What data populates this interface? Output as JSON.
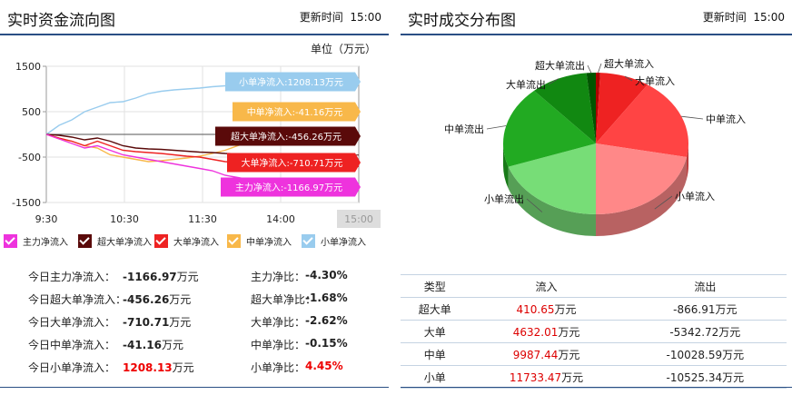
{
  "left_panel": {
    "title": "实时资金流向图",
    "time_label": "更新时间",
    "time_value": "15:00",
    "unit": "单位（万元）"
  },
  "right_panel": {
    "title": "实时成交分布图",
    "time_label": "更新时间",
    "time_value": "15:00"
  },
  "chart_data": [
    {
      "type": "line",
      "x_ticks": [
        "9:30",
        "10:30",
        "11:30",
        "14:00",
        "15:00"
      ],
      "y_ticks": [
        1500,
        500,
        -500,
        -1500
      ],
      "ylim": [
        -1500,
        1500
      ],
      "grid": true,
      "legend_position": "bottom",
      "colors": {
        "main": "#ee33dd",
        "super": "#5a0a0a",
        "large": "#ee2222",
        "medium": "#f8b84a",
        "small": "#99ccee"
      },
      "series": [
        {
          "key": "small",
          "name": "小单净流入",
          "color": "#99ccee",
          "tag": "小单净流入:1208.13万元",
          "values": [
            0,
            200,
            320,
            500,
            600,
            700,
            720,
            800,
            900,
            950,
            980,
            1000,
            1020,
            1050,
            1070,
            1080,
            1100,
            1150,
            1208
          ]
        },
        {
          "key": "medium",
          "name": "中单净流入",
          "color": "#f8b84a",
          "tag": "中单净流入:-41.16万元",
          "values": [
            0,
            -100,
            -150,
            -250,
            -300,
            -450,
            -500,
            -550,
            -600,
            -580,
            -550,
            -520,
            -480,
            -420,
            -350,
            -250,
            -150,
            -80,
            -41
          ]
        },
        {
          "key": "super",
          "name": "超大单净流入",
          "color": "#5a0a0a",
          "tag": "超大单净流入:-456.26万元",
          "values": [
            0,
            -20,
            -60,
            -120,
            -80,
            -150,
            -250,
            -300,
            -320,
            -330,
            -350,
            -370,
            -390,
            -400,
            -420,
            -430,
            -440,
            -450,
            -456
          ]
        },
        {
          "key": "large",
          "name": "大单净流入",
          "color": "#ee2222",
          "tag": "大单净流入:-710.71万元",
          "values": [
            0,
            -80,
            -150,
            -250,
            -150,
            -250,
            -350,
            -380,
            -400,
            -420,
            -450,
            -480,
            -500,
            -550,
            -600,
            -620,
            -650,
            -690,
            -711
          ]
        },
        {
          "key": "main",
          "name": "主力净流入",
          "color": "#ee33dd",
          "tag": "主力净流入:-1166.97万元",
          "values": [
            0,
            -100,
            -200,
            -300,
            -250,
            -350,
            -450,
            -500,
            -550,
            -600,
            -650,
            -700,
            -750,
            -800,
            -900,
            -950,
            -1000,
            -1100,
            -1167
          ]
        }
      ]
    },
    {
      "type": "pie",
      "slices": [
        {
          "label": "超大单流入",
          "value": 410.65,
          "color": "#b00000"
        },
        {
          "label": "大单流入",
          "value": 4632.01,
          "color": "#ee2222"
        },
        {
          "label": "中单流入",
          "value": 9987.44,
          "color": "#ff4444"
        },
        {
          "label": "小单流入",
          "value": 11733.47,
          "color": "#ff8888"
        },
        {
          "label": "小单流出",
          "value": 10525.34,
          "color": "#77dd77"
        },
        {
          "label": "中单流出",
          "value": 10028.59,
          "color": "#22aa22"
        },
        {
          "label": "大单流出",
          "value": 5342.72,
          "color": "#118811"
        },
        {
          "label": "超大单流出",
          "value": 866.91,
          "color": "#005500"
        }
      ]
    }
  ],
  "legend_items": [
    {
      "label": "主力净流入",
      "color": "#ee33dd"
    },
    {
      "label": "超大单净流入",
      "color": "#5a0a0a"
    },
    {
      "label": "大单净流入",
      "color": "#ee2222"
    },
    {
      "label": "中单净流入",
      "color": "#f8b84a"
    },
    {
      "label": "小单净流入",
      "color": "#99ccee"
    }
  ],
  "stats": [
    {
      "label": "今日主力净流入：",
      "value": "-1166.97",
      "value_unit": "万元",
      "ratio_label": "主力净比：",
      "ratio": "-4.30%",
      "highlight": false
    },
    {
      "label": "今日超大单净流入：",
      "value": "-456.26",
      "value_unit": "万元",
      "ratio_label": "超大单净比：",
      "ratio": "-1.68%",
      "highlight": false
    },
    {
      "label": "今日大单净流入：",
      "value": "-710.71",
      "value_unit": "万元",
      "ratio_label": "大单净比：",
      "ratio": "-2.62%",
      "highlight": false
    },
    {
      "label": "今日中单净流入：",
      "value": "-41.16",
      "value_unit": "万元",
      "ratio_label": "中单净比：",
      "ratio": "-0.15%",
      "highlight": false
    },
    {
      "label": "今日小单净流入：",
      "value": "1208.13",
      "value_unit": "万元",
      "ratio_label": "小单净比：",
      "ratio": "4.45%",
      "highlight": true
    }
  ],
  "flow_table": {
    "headers": [
      "类型",
      "流入",
      "流出"
    ],
    "unit": "万元",
    "rows": [
      {
        "type": "超大单",
        "inflow": "410.65",
        "outflow": "-866.91"
      },
      {
        "type": "大单",
        "inflow": "4632.01",
        "outflow": "-5342.72"
      },
      {
        "type": "中单",
        "inflow": "9987.44",
        "outflow": "-10028.59"
      },
      {
        "type": "小单",
        "inflow": "11733.47",
        "outflow": "-10525.34"
      }
    ]
  }
}
